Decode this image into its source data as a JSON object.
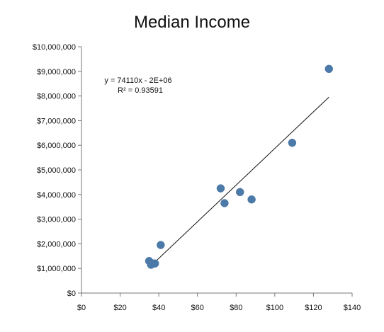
{
  "chart_data": {
    "type": "scatter",
    "title": "Median Income",
    "xlabel": "",
    "ylabel": "",
    "xlim": [
      0,
      140
    ],
    "ylim": [
      0,
      10000000
    ],
    "x_ticks": [
      0,
      20,
      40,
      60,
      80,
      100,
      120,
      140
    ],
    "y_ticks": [
      0,
      1000000,
      2000000,
      3000000,
      4000000,
      5000000,
      6000000,
      7000000,
      8000000,
      9000000,
      10000000
    ],
    "x_tick_labels": [
      "$0",
      "$20",
      "$40",
      "$60",
      "$80",
      "$100",
      "$120",
      "$140"
    ],
    "y_tick_labels": [
      "$0",
      "$1,000,000",
      "$2,000,000",
      "$3,000,000",
      "$4,000,000",
      "$5,000,000",
      "$6,000,000",
      "$7,000,000",
      "$8,000,000",
      "$9,000,000",
      "$10,000,000"
    ],
    "grid": false,
    "legend": "none",
    "marker_color": "#4b79a8",
    "trendline_color": "#111111",
    "series": [
      {
        "points": [
          {
            "x": 35,
            "y": 1300000
          },
          {
            "x": 36,
            "y": 1150000
          },
          {
            "x": 37,
            "y": 1200000
          },
          {
            "x": 38,
            "y": 1200000
          },
          {
            "x": 41,
            "y": 1950000
          },
          {
            "x": 72,
            "y": 4250000
          },
          {
            "x": 74,
            "y": 3650000
          },
          {
            "x": 82,
            "y": 4100000
          },
          {
            "x": 88,
            "y": 3800000
          },
          {
            "x": 109,
            "y": 6100000
          },
          {
            "x": 128,
            "y": 9100000
          }
        ]
      }
    ],
    "trendline": {
      "x_start": 35.5,
      "x_end": 128,
      "equation_text": "y = 74110x - 2E+06",
      "r2_text": "R² = 0.93591"
    }
  }
}
